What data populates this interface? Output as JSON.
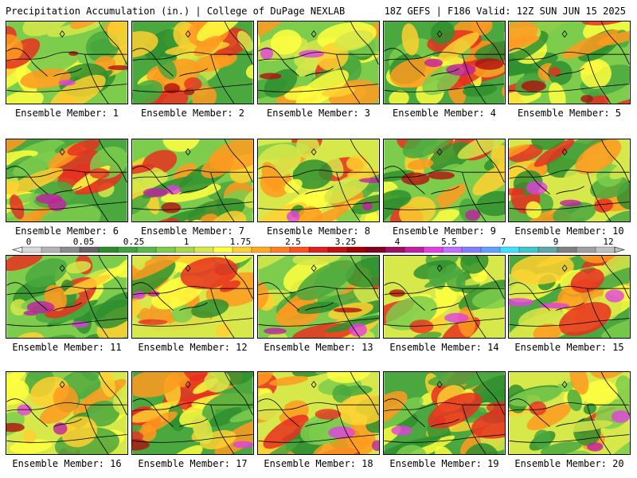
{
  "header": {
    "title": "Precipitation Accumulation (in.) | College of DuPage NEXLAB",
    "run_info": "18Z GEFS | F186 Valid: 12Z SUN JUN 15 2025"
  },
  "legend": {
    "tick_labels": [
      "0",
      "0.05",
      "0.25",
      "1",
      "1.75",
      "2.5",
      "3.25",
      "4",
      "5.5",
      "7",
      "9",
      "12"
    ],
    "colors": [
      "#d9d9d9",
      "#b3b3b3",
      "#8c8c8c",
      "#666666",
      "#2e8b2e",
      "#3ea33e",
      "#58b84a",
      "#7dcc4c",
      "#a8d84a",
      "#d6e84a",
      "#ffff40",
      "#ffd030",
      "#ffaa20",
      "#ff8020",
      "#ff5020",
      "#e02020",
      "#c01010",
      "#a00000",
      "#800020",
      "#a01060",
      "#c020a0",
      "#e040e0",
      "#c070ff",
      "#8080ff",
      "#60a0ff",
      "#40e0ff",
      "#40c8c8",
      "#60a8a8",
      "#808080",
      "#a0a0a0",
      "#c0c0c0"
    ]
  },
  "members": [
    {
      "label": "Ensemble Member: 1"
    },
    {
      "label": "Ensemble Member: 2"
    },
    {
      "label": "Ensemble Member: 3"
    },
    {
      "label": "Ensemble Member: 4"
    },
    {
      "label": "Ensemble Member: 5"
    },
    {
      "label": "Ensemble Member: 6"
    },
    {
      "label": "Ensemble Member: 7"
    },
    {
      "label": "Ensemble Member: 8"
    },
    {
      "label": "Ensemble Member: 9"
    },
    {
      "label": "Ensemble Member: 10"
    },
    {
      "label": "Ensemble Member: 11"
    },
    {
      "label": "Ensemble Member: 12"
    },
    {
      "label": "Ensemble Member: 13"
    },
    {
      "label": "Ensemble Member: 14"
    },
    {
      "label": "Ensemble Member: 15"
    },
    {
      "label": "Ensemble Member: 16"
    },
    {
      "label": "Ensemble Member: 17"
    },
    {
      "label": "Ensemble Member: 18"
    },
    {
      "label": "Ensemble Member: 19"
    },
    {
      "label": "Ensemble Member: 20"
    }
  ]
}
